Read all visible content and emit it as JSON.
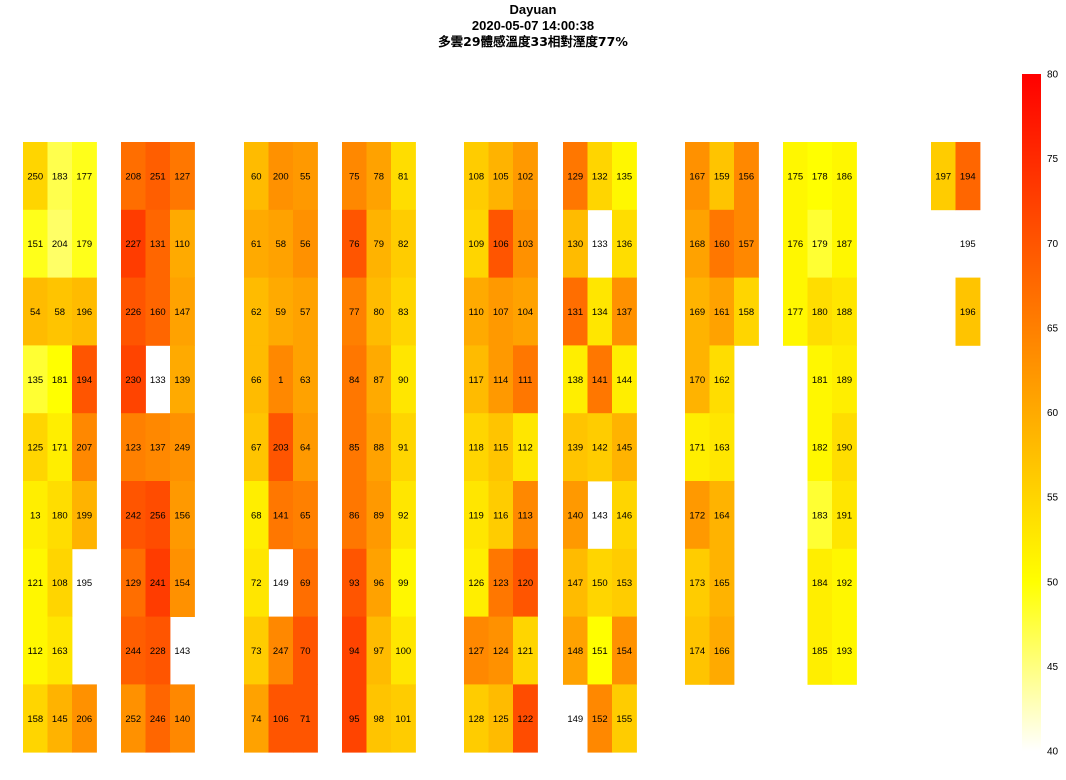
{
  "title": "Dayuan",
  "timestamp": "2020-05-07 14:00:38",
  "weather": "多雲29體感溫度33相對溼度77%",
  "chart_data": {
    "type": "heatmap",
    "title": "Dayuan",
    "subtitle": [
      "2020-05-07 14:00:38",
      "多雲29體感溫度33相對溼度77%"
    ],
    "color_scale": {
      "min": 40,
      "max": 80,
      "low_color": "#ffffff",
      "mid_color": "#ffff00",
      "high_color": "#ff0000",
      "ticks": [
        "40",
        "45",
        "50",
        "55",
        "60",
        "65",
        "70",
        "75",
        "80"
      ]
    },
    "grid": false,
    "legend": "right (vertical colorbar)",
    "blocks": [
      {
        "columns": [
          [
            [
              "250",
              55
            ],
            [
              "151",
              49
            ],
            [
              "54",
              58
            ],
            [
              "135",
              48
            ],
            [
              "125",
              55
            ],
            [
              "13",
              52
            ],
            [
              "121",
              51
            ],
            [
              "112",
              51
            ],
            [
              "158",
              55
            ]
          ],
          [
            [
              "183",
              47
            ],
            [
              "204",
              46
            ],
            [
              "58",
              57
            ],
            [
              "181",
              50
            ],
            [
              "171",
              52
            ],
            [
              "180",
              54
            ],
            [
              "108",
              55
            ],
            [
              "163",
              53
            ],
            [
              "145",
              59
            ]
          ],
          [
            [
              "177",
              49
            ],
            [
              "179",
              49
            ],
            [
              "196",
              58
            ],
            [
              "194",
              70
            ],
            [
              "207",
              64
            ],
            [
              "199",
              59
            ],
            [
              "195",
              null
            ],
            null,
            [
              "206",
              63
            ]
          ]
        ]
      },
      {
        "columns": [
          [
            [
              "208",
              67
            ],
            [
              "227",
              73
            ],
            [
              "226",
              70
            ],
            [
              "230",
              72
            ],
            [
              "123",
              65
            ],
            [
              "242",
              70
            ],
            [
              "129",
              67
            ],
            [
              "244",
              69
            ],
            [
              "252",
              63
            ]
          ],
          [
            [
              "251",
              69
            ],
            [
              "131",
              68
            ],
            [
              "160",
              68
            ],
            [
              "133",
              null
            ],
            [
              "137",
              64
            ],
            [
              "256",
              71
            ],
            [
              "241",
              73
            ],
            [
              "228",
              70
            ],
            [
              "246",
              68
            ]
          ],
          [
            [
              "127",
              66
            ],
            [
              "110",
              60
            ],
            [
              "147",
              61
            ],
            [
              "139",
              60
            ],
            [
              "249",
              63
            ],
            [
              "156",
              62
            ],
            [
              "154",
              63
            ],
            [
              "143",
              null
            ],
            [
              "140",
              64
            ]
          ]
        ]
      },
      {
        "columns": [
          [
            [
              "60",
              58
            ],
            [
              "61",
              60
            ],
            [
              "62",
              58
            ],
            [
              "66",
              58
            ],
            [
              "67",
              57
            ],
            [
              "68",
              52
            ],
            [
              "72",
              53
            ],
            [
              "73",
              56
            ],
            [
              "74",
              61
            ]
          ],
          [
            [
              "200",
              63
            ],
            [
              "58",
              61
            ],
            [
              "59",
              60
            ],
            [
              "1",
              64
            ],
            [
              "203",
              70
            ],
            [
              "141",
              66
            ],
            [
              "149",
              null
            ],
            [
              "247",
              64
            ],
            [
              "106",
              70
            ]
          ],
          [
            [
              "55",
              62
            ],
            [
              "56",
              63
            ],
            [
              "57",
              61
            ],
            [
              "63",
              61
            ],
            [
              "64",
              62
            ],
            [
              "65",
              65
            ],
            [
              "69",
              67
            ],
            [
              "70",
              70
            ],
            [
              "71",
              70
            ]
          ]
        ]
      },
      {
        "columns": [
          [
            [
              "75",
              64
            ],
            [
              "76",
              70
            ],
            [
              "77",
              65
            ],
            [
              "84",
              66
            ],
            [
              "85",
              66
            ],
            [
              "86",
              66
            ],
            [
              "93",
              70
            ],
            [
              "94",
              72
            ],
            [
              "95",
              72
            ]
          ],
          [
            [
              "78",
              61
            ],
            [
              "79",
              59
            ],
            [
              "80",
              58
            ],
            [
              "87",
              60
            ],
            [
              "88",
              61
            ],
            [
              "89",
              62
            ],
            [
              "96",
              61
            ],
            [
              "97",
              58
            ],
            [
              "98",
              57
            ]
          ],
          [
            [
              "81",
              54
            ],
            [
              "82",
              56
            ],
            [
              "83",
              55
            ],
            [
              "90",
              53
            ],
            [
              "91",
              55
            ],
            [
              "92",
              53
            ],
            [
              "99",
              51
            ],
            [
              "100",
              53
            ],
            [
              "101",
              56
            ]
          ]
        ]
      },
      {
        "columns": [
          [
            [
              "108",
              56
            ],
            [
              "109",
              55
            ],
            [
              "110",
              60
            ],
            [
              "117",
              58
            ],
            [
              "118",
              55
            ],
            [
              "119",
              53
            ],
            [
              "126",
              52
            ],
            [
              "127",
              64
            ],
            [
              "128",
              56
            ]
          ],
          [
            [
              "105",
              59
            ],
            [
              "106",
              70
            ],
            [
              "107",
              62
            ],
            [
              "114",
              62
            ],
            [
              "115",
              57
            ],
            [
              "116",
              56
            ],
            [
              "123",
              66
            ],
            [
              "124",
              63
            ],
            [
              "125",
              58
            ]
          ],
          [
            [
              "102",
              62
            ],
            [
              "103",
              63
            ],
            [
              "104",
              61
            ],
            [
              "111",
              66
            ],
            [
              "112",
              53
            ],
            [
              "113",
              64
            ],
            [
              "120",
              70
            ],
            [
              "121",
              55
            ],
            [
              "122",
              71
            ]
          ]
        ]
      },
      {
        "columns": [
          [
            [
              "129",
              66
            ],
            [
              "130",
              58
            ],
            [
              "131",
              67
            ],
            [
              "138",
              52
            ],
            [
              "139",
              57
            ],
            [
              "140",
              62
            ],
            [
              "147",
              58
            ],
            [
              "148",
              61
            ],
            [
              "149",
              null
            ]
          ],
          [
            [
              "132",
              55
            ],
            [
              "133",
              null
            ],
            [
              "134",
              53
            ],
            [
              "141",
              66
            ],
            [
              "142",
              56
            ],
            [
              "143",
              null
            ],
            [
              "150",
              55
            ],
            [
              "151",
              50
            ],
            [
              "152",
              64
            ]
          ],
          [
            [
              "135",
              51
            ],
            [
              "136",
              54
            ],
            [
              "137",
              63
            ],
            [
              "144",
              52
            ],
            [
              "145",
              59
            ],
            [
              "146",
              55
            ],
            [
              "153",
              56
            ],
            [
              "154",
              63
            ],
            [
              "155",
              56
            ]
          ]
        ]
      },
      {
        "columns": [
          [
            [
              "167",
              63
            ],
            [
              "168",
              61
            ],
            [
              "169",
              59
            ],
            [
              "170",
              59
            ],
            [
              "171",
              52
            ],
            [
              "172",
              62
            ],
            [
              "173",
              56
            ],
            [
              "174",
              57
            ]
          ],
          [
            [
              "159",
              57
            ],
            [
              "160",
              66
            ],
            [
              "161",
              61
            ],
            [
              "162",
              54
            ],
            [
              "163",
              53
            ],
            [
              "164",
              59
            ],
            [
              "165",
              59
            ],
            [
              "166",
              60
            ]
          ],
          [
            [
              "156",
              64
            ],
            [
              "157",
              64
            ],
            [
              "158",
              55
            ],
            null,
            null,
            null,
            null,
            null
          ]
        ]
      },
      {
        "columns": [
          [
            [
              "175",
              51
            ],
            [
              "176",
              51
            ],
            [
              "177",
              51
            ],
            null,
            null,
            null,
            null,
            null
          ],
          [
            [
              "178",
              50
            ],
            [
              "179",
              48
            ],
            [
              "180",
              54
            ],
            [
              "181",
              51
            ],
            [
              "182",
              51
            ],
            [
              "183",
              48
            ],
            [
              "184",
              52
            ],
            [
              "185",
              52
            ]
          ],
          [
            [
              "186",
              51
            ],
            [
              "187",
              51
            ],
            [
              "188",
              53
            ],
            [
              "189",
              52
            ],
            [
              "190",
              54
            ],
            [
              "191",
              53
            ],
            [
              "192",
              51
            ],
            [
              "193",
              51
            ]
          ]
        ]
      },
      {
        "columns": [
          [
            [
              "197",
              56
            ],
            null,
            null
          ],
          [
            [
              "194",
              68
            ],
            [
              "195",
              null
            ],
            [
              "196",
              57
            ]
          ]
        ]
      }
    ]
  }
}
